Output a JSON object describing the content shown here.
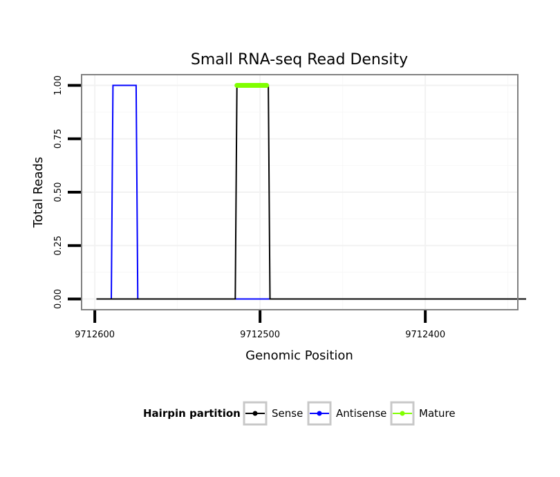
{
  "chart_data": {
    "type": "line",
    "title": "Small RNA-seq Read Density",
    "xlabel": "Genomic Position",
    "ylabel": "Total Reads",
    "x_reversed": true,
    "xlim": [
      9712608,
      9712344
    ],
    "ylim": [
      -0.05,
      1.05
    ],
    "x_ticks": [
      9712600,
      9712500,
      9712400
    ],
    "x_tick_labels": [
      "9712600",
      "9712500",
      "9712400"
    ],
    "y_ticks": [
      0,
      0.25,
      0.5,
      0.75,
      1.0
    ],
    "y_tick_labels": [
      "0.00",
      "0.25",
      "0.50",
      "0.75",
      "1.00"
    ],
    "grid": true,
    "legend": {
      "title": "Hairpin partition",
      "position": "bottom",
      "entries": [
        "Sense",
        "Antisense",
        "Mature"
      ]
    },
    "series": [
      {
        "name": "Sense",
        "color": "#000000",
        "x": [
          9712599,
          9712515,
          9712514,
          9712495,
          9712494,
          9712339
        ],
        "y": [
          0,
          0,
          1,
          1,
          0,
          0
        ]
      },
      {
        "name": "Antisense",
        "color": "#0000ff",
        "x": [
          9712590,
          9712589,
          9712575,
          9712574,
          9712515,
          9712494
        ],
        "y": [
          0,
          1,
          1,
          0,
          0,
          0
        ]
      },
      {
        "name": "Mature",
        "color": "#80ff00",
        "x": [
          9712514,
          9712496
        ],
        "y": [
          1,
          1
        ]
      }
    ]
  }
}
